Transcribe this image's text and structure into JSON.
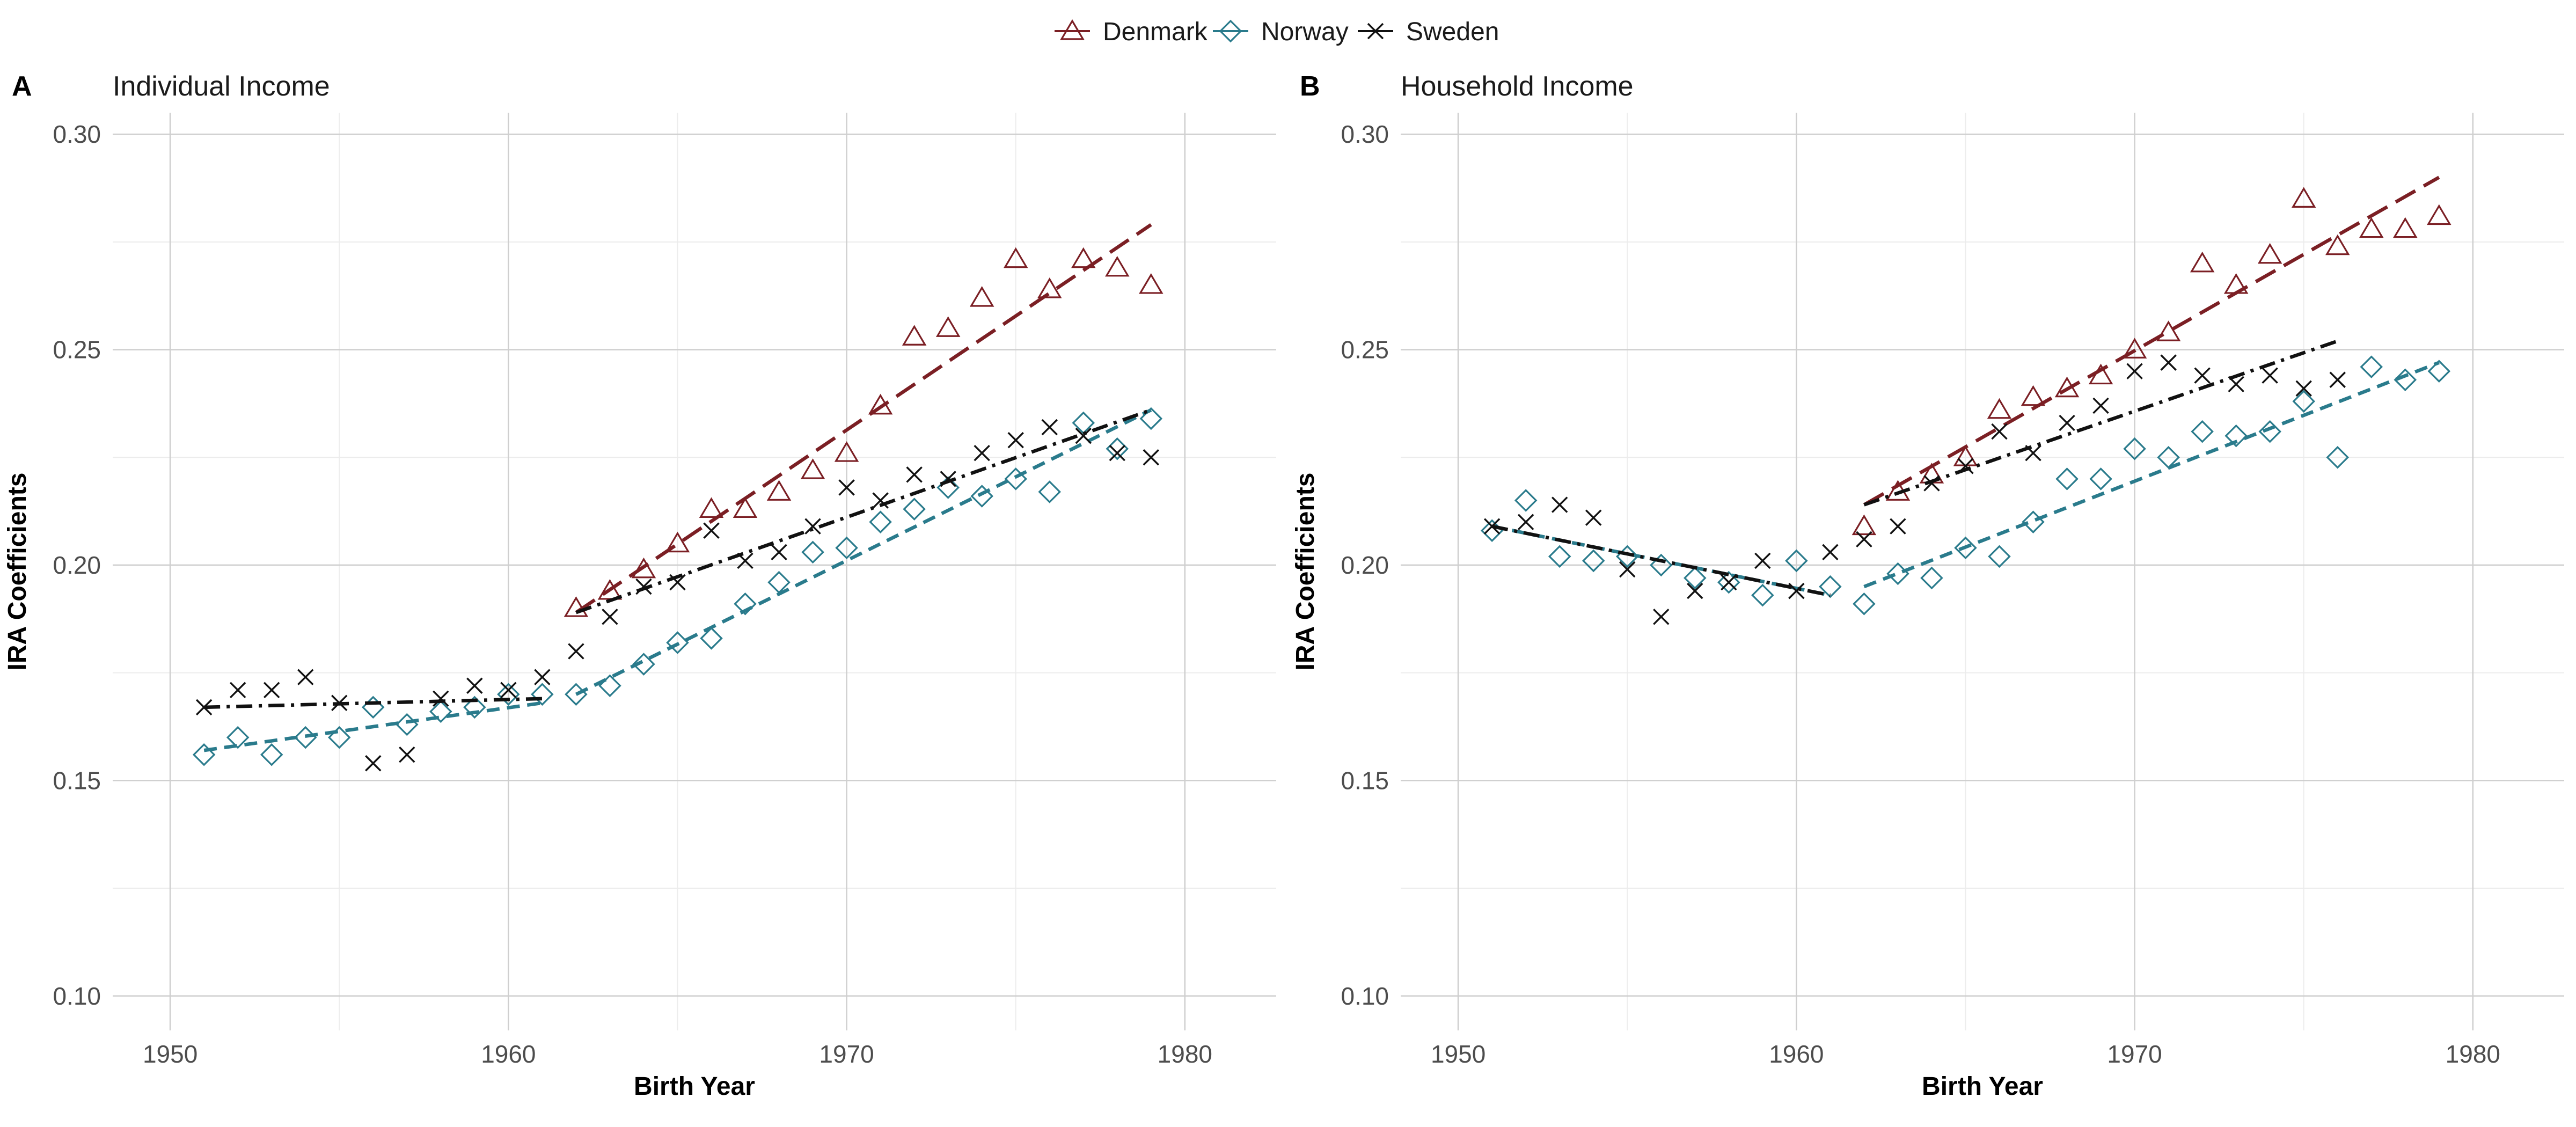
{
  "legend": {
    "items": [
      {
        "label": "Denmark",
        "color": "#7b1f24",
        "marker": "triangle",
        "dash": "long"
      },
      {
        "label": "Norway",
        "color": "#2a7b8c",
        "marker": "diamond",
        "dash": "short"
      },
      {
        "label": "Sweden",
        "color": "#111111",
        "marker": "cross",
        "dash": "dotdash"
      }
    ]
  },
  "chart_data": [
    {
      "panel": "A",
      "type": "scatter",
      "title": "Individual Income",
      "xlabel": "Birth Year",
      "ylabel": "IRA Coefficients",
      "xlim": [
        1948.3,
        1982.7
      ],
      "ylim": [
        0.092,
        0.305
      ],
      "xticks": [
        1950,
        1960,
        1970,
        1980
      ],
      "xtick_labels": [
        "1950",
        "1960",
        "1970",
        "1980"
      ],
      "yticks": [
        0.1,
        0.15,
        0.2,
        0.25,
        0.3
      ],
      "ytick_labels": [
        "0.10",
        "0.15",
        "0.20",
        "0.25",
        "0.30"
      ],
      "series": [
        {
          "name": "Denmark",
          "points": [
            [
              1962,
              0.19
            ],
            [
              1963,
              0.194
            ],
            [
              1964,
              0.199
            ],
            [
              1965,
              0.205
            ],
            [
              1966,
              0.213
            ],
            [
              1967,
              0.213
            ],
            [
              1968,
              0.217
            ],
            [
              1969,
              0.222
            ],
            [
              1970,
              0.226
            ],
            [
              1971,
              0.237
            ],
            [
              1972,
              0.253
            ],
            [
              1973,
              0.255
            ],
            [
              1974,
              0.262
            ],
            [
              1975,
              0.271
            ],
            [
              1976,
              0.264
            ],
            [
              1977,
              0.271
            ],
            [
              1978,
              0.269
            ],
            [
              1979,
              0.265
            ]
          ],
          "fit": [
            [
              [
                1962,
                0.189
              ],
              [
                1979,
                0.279
              ]
            ]
          ]
        },
        {
          "name": "Norway",
          "points": [
            [
              1951,
              0.156
            ],
            [
              1952,
              0.16
            ],
            [
              1953,
              0.156
            ],
            [
              1954,
              0.16
            ],
            [
              1955,
              0.16
            ],
            [
              1956,
              0.167
            ],
            [
              1957,
              0.163
            ],
            [
              1958,
              0.166
            ],
            [
              1959,
              0.167
            ],
            [
              1960,
              0.17
            ],
            [
              1961,
              0.17
            ],
            [
              1962,
              0.17
            ],
            [
              1963,
              0.172
            ],
            [
              1964,
              0.177
            ],
            [
              1965,
              0.182
            ],
            [
              1966,
              0.183
            ],
            [
              1967,
              0.191
            ],
            [
              1968,
              0.196
            ],
            [
              1969,
              0.203
            ],
            [
              1970,
              0.204
            ],
            [
              1971,
              0.21
            ],
            [
              1972,
              0.213
            ],
            [
              1973,
              0.218
            ],
            [
              1974,
              0.216
            ],
            [
              1975,
              0.22
            ],
            [
              1976,
              0.217
            ],
            [
              1977,
              0.233
            ],
            [
              1978,
              0.227
            ],
            [
              1979,
              0.234
            ]
          ],
          "fit": [
            [
              [
                1951,
                0.157
              ],
              [
                1961,
                0.168
              ]
            ],
            [
              [
                1962,
                0.17
              ],
              [
                1979,
                0.236
              ]
            ]
          ]
        },
        {
          "name": "Sweden",
          "points": [
            [
              1951,
              0.167
            ],
            [
              1952,
              0.171
            ],
            [
              1953,
              0.171
            ],
            [
              1954,
              0.174
            ],
            [
              1955,
              0.168
            ],
            [
              1956,
              0.154
            ],
            [
              1957,
              0.156
            ],
            [
              1958,
              0.169
            ],
            [
              1959,
              0.172
            ],
            [
              1960,
              0.171
            ],
            [
              1961,
              0.174
            ],
            [
              1962,
              0.18
            ],
            [
              1963,
              0.188
            ],
            [
              1964,
              0.195
            ],
            [
              1965,
              0.196
            ],
            [
              1966,
              0.208
            ],
            [
              1967,
              0.201
            ],
            [
              1968,
              0.203
            ],
            [
              1969,
              0.209
            ],
            [
              1970,
              0.218
            ],
            [
              1971,
              0.215
            ],
            [
              1972,
              0.221
            ],
            [
              1973,
              0.22
            ],
            [
              1974,
              0.226
            ],
            [
              1975,
              0.229
            ],
            [
              1976,
              0.232
            ],
            [
              1977,
              0.23
            ],
            [
              1978,
              0.226
            ],
            [
              1979,
              0.225
            ]
          ],
          "fit": [
            [
              [
                1951,
                0.167
              ],
              [
                1961,
                0.169
              ]
            ],
            [
              [
                1962,
                0.189
              ],
              [
                1979,
                0.236
              ]
            ]
          ]
        }
      ]
    },
    {
      "panel": "B",
      "type": "scatter",
      "title": "Household Income",
      "xlabel": "Birth Year",
      "ylabel": "IRA Coefficients",
      "xlim": [
        1948.3,
        1982.7
      ],
      "ylim": [
        0.092,
        0.305
      ],
      "xticks": [
        1950,
        1960,
        1970,
        1980
      ],
      "xtick_labels": [
        "1950",
        "1960",
        "1970",
        "1980"
      ],
      "yticks": [
        0.1,
        0.15,
        0.2,
        0.25,
        0.3
      ],
      "ytick_labels": [
        "0.10",
        "0.15",
        "0.20",
        "0.25",
        "0.30"
      ],
      "series": [
        {
          "name": "Denmark",
          "points": [
            [
              1962,
              0.209
            ],
            [
              1963,
              0.217
            ],
            [
              1964,
              0.221
            ],
            [
              1965,
              0.225
            ],
            [
              1966,
              0.236
            ],
            [
              1967,
              0.239
            ],
            [
              1968,
              0.241
            ],
            [
              1969,
              0.244
            ],
            [
              1970,
              0.25
            ],
            [
              1971,
              0.254
            ],
            [
              1972,
              0.27
            ],
            [
              1973,
              0.265
            ],
            [
              1974,
              0.272
            ],
            [
              1975,
              0.285
            ],
            [
              1976,
              0.274
            ],
            [
              1977,
              0.278
            ],
            [
              1978,
              0.278
            ],
            [
              1979,
              0.281
            ]
          ],
          "fit": [
            [
              [
                1962,
                0.214
              ],
              [
                1979,
                0.29
              ]
            ]
          ]
        },
        {
          "name": "Norway",
          "points": [
            [
              1951,
              0.208
            ],
            [
              1952,
              0.215
            ],
            [
              1953,
              0.202
            ],
            [
              1954,
              0.201
            ],
            [
              1955,
              0.202
            ],
            [
              1956,
              0.2
            ],
            [
              1957,
              0.197
            ],
            [
              1958,
              0.196
            ],
            [
              1959,
              0.193
            ],
            [
              1960,
              0.201
            ],
            [
              1961,
              0.195
            ],
            [
              1962,
              0.191
            ],
            [
              1963,
              0.198
            ],
            [
              1964,
              0.197
            ],
            [
              1965,
              0.204
            ],
            [
              1966,
              0.202
            ],
            [
              1967,
              0.21
            ],
            [
              1968,
              0.22
            ],
            [
              1969,
              0.22
            ],
            [
              1970,
              0.227
            ],
            [
              1971,
              0.225
            ],
            [
              1972,
              0.231
            ],
            [
              1973,
              0.23
            ],
            [
              1974,
              0.231
            ],
            [
              1975,
              0.238
            ],
            [
              1976,
              0.225
            ],
            [
              1977,
              0.246
            ],
            [
              1978,
              0.243
            ],
            [
              1979,
              0.245
            ]
          ],
          "fit": [
            [
              [
                1951,
                0.209
              ],
              [
                1961,
                0.193
              ]
            ],
            [
              [
                1962,
                0.195
              ],
              [
                1979,
                0.247
              ]
            ]
          ]
        },
        {
          "name": "Sweden",
          "points": [
            [
              1951,
              0.209
            ],
            [
              1952,
              0.21
            ],
            [
              1953,
              0.214
            ],
            [
              1954,
              0.211
            ],
            [
              1955,
              0.199
            ],
            [
              1956,
              0.188
            ],
            [
              1957,
              0.194
            ],
            [
              1958,
              0.196
            ],
            [
              1959,
              0.201
            ],
            [
              1960,
              0.194
            ],
            [
              1961,
              0.203
            ],
            [
              1962,
              0.206
            ],
            [
              1963,
              0.209
            ],
            [
              1964,
              0.219
            ],
            [
              1965,
              0.223
            ],
            [
              1966,
              0.231
            ],
            [
              1967,
              0.226
            ],
            [
              1968,
              0.233
            ],
            [
              1969,
              0.237
            ],
            [
              1970,
              0.245
            ],
            [
              1971,
              0.247
            ],
            [
              1972,
              0.244
            ],
            [
              1973,
              0.242
            ],
            [
              1974,
              0.244
            ],
            [
              1975,
              0.241
            ],
            [
              1976,
              0.243
            ]
          ],
          "fit": [
            [
              [
                1951,
                0.209
              ],
              [
                1961,
                0.193
              ]
            ],
            [
              [
                1962,
                0.214
              ],
              [
                1976,
                0.252
              ]
            ]
          ]
        }
      ]
    }
  ]
}
